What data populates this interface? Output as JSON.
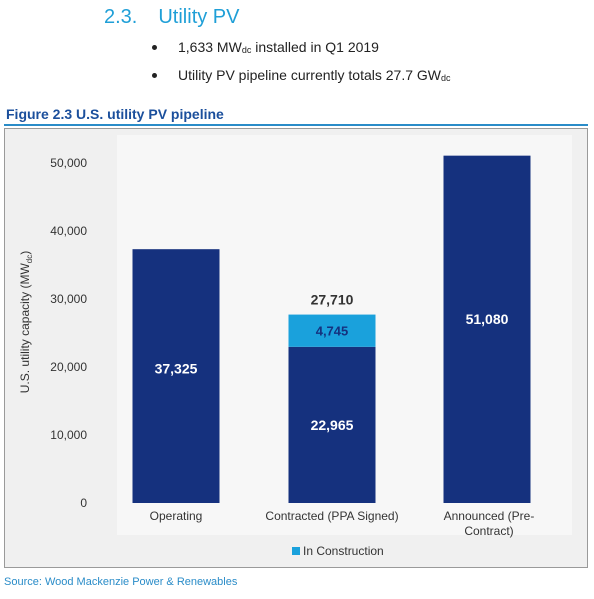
{
  "section": {
    "number": "2.3.",
    "title": "Utility PV"
  },
  "bullets": [
    {
      "pre": "1,633 MW",
      "sub": "dc",
      "post": " installed in Q1 2019"
    },
    {
      "pre": "Utility PV pipeline currently totals 27.7 GW",
      "sub": "dc",
      "post": ""
    }
  ],
  "figure_title": "Figure 2.3 U.S. utility PV pipeline",
  "source": "Source: Wood Mackenzie Power & Renewables",
  "colors": {
    "bar": "#15317e",
    "construction": "#1aa1dc",
    "heading": "#1f9fd7",
    "figure_title": "#1b4f9c"
  },
  "chart_data": {
    "type": "bar",
    "stacked": true,
    "ylabel_main": "U.S. utility capacity (MW",
    "ylabel_sub": "dc",
    "ylabel_end": ")",
    "ylim": [
      0,
      55000
    ],
    "yticks": [
      0,
      10000,
      20000,
      30000,
      40000,
      50000
    ],
    "ytick_labels": [
      "0",
      "10,000",
      "20,000",
      "30,000",
      "40,000",
      "50,000"
    ],
    "categories": [
      {
        "lines": [
          "Operating"
        ]
      },
      {
        "lines": [
          "Contracted (PPA Signed)"
        ]
      },
      {
        "lines": [
          "Announced (Pre-",
          "Contract)"
        ]
      }
    ],
    "series": [
      {
        "values": [
          37325,
          22965,
          51080
        ],
        "labels": [
          "37,325",
          "22,965",
          "51,080"
        ]
      },
      {
        "name": "In Construction",
        "values": [
          0,
          4745,
          0
        ],
        "labels": [
          "",
          "4,745",
          ""
        ]
      }
    ],
    "totals": [
      "",
      "27,710",
      ""
    ],
    "legend_position": "bottom",
    "grid": false
  }
}
